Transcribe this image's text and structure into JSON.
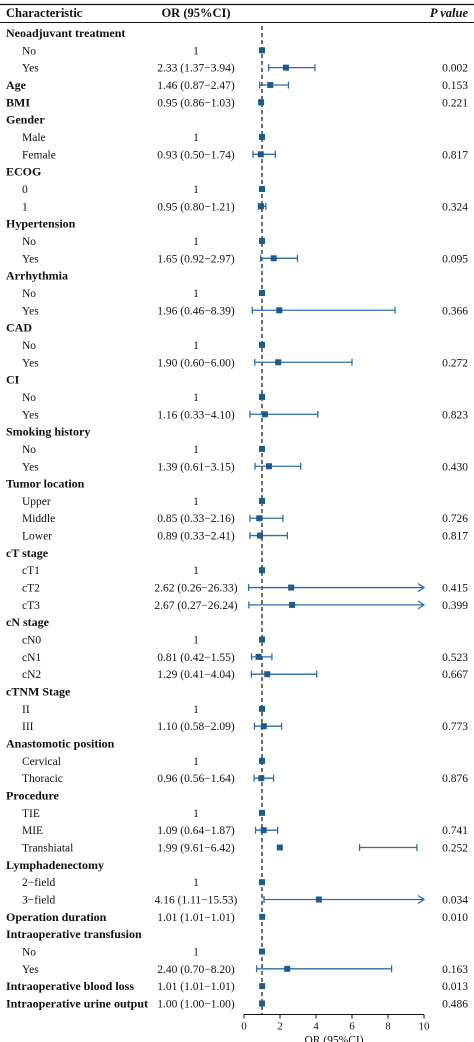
{
  "header": {
    "characteristic": "Characteristic",
    "or_ci": "OR (95%CI)",
    "p_value": "P value"
  },
  "axis": {
    "label": "OR (95%CI)",
    "ticks": [
      0,
      2,
      4,
      6,
      8,
      10
    ],
    "xlim": [
      0,
      10
    ],
    "reference": 1
  },
  "colors": {
    "marker": "#1f5a8c",
    "line": "#2a6ea8",
    "reference": "#222222"
  },
  "chart_data": {
    "type": "forest",
    "x_label": "OR (95%CI)",
    "xlim": [
      0,
      10
    ],
    "reference_line": 1,
    "rows": [
      {
        "label": "Neoadjuvant treatment",
        "header": true
      },
      {
        "label": "No",
        "or_text": "1",
        "or": 1
      },
      {
        "label": "Yes",
        "or_text": "2.33 (1.37−3.94)",
        "or": 2.33,
        "lo": 1.37,
        "hi": 3.94,
        "p": "0.002"
      },
      {
        "label": "Age",
        "header": true,
        "or_text": "1.46 (0.87−2.47)",
        "or": 1.46,
        "lo": 0.87,
        "hi": 2.47,
        "p": "0.153"
      },
      {
        "label": "BMI",
        "header": true,
        "or_text": "0.95 (0.86−1.03)",
        "or": 0.95,
        "lo": 0.86,
        "hi": 1.03,
        "p": "0.221"
      },
      {
        "label": "Gender",
        "header": true
      },
      {
        "label": "Male",
        "or_text": "1",
        "or": 1
      },
      {
        "label": "Female",
        "or_text": "0.93 (0.50−1.74)",
        "or": 0.93,
        "lo": 0.5,
        "hi": 1.74,
        "p": "0.817"
      },
      {
        "label": "ECOG",
        "header": true
      },
      {
        "label": "0",
        "or_text": "1",
        "or": 1
      },
      {
        "label": "1",
        "or_text": "0.95 (0.80−1.21)",
        "or": 0.95,
        "lo": 0.8,
        "hi": 1.21,
        "p": "0.324"
      },
      {
        "label": "Hypertension",
        "header": true
      },
      {
        "label": "No",
        "or_text": "1",
        "or": 1
      },
      {
        "label": "Yes",
        "or_text": "1.65 (0.92−2.97)",
        "or": 1.65,
        "lo": 0.92,
        "hi": 2.97,
        "p": "0.095"
      },
      {
        "label": "Arrhythmia",
        "header": true
      },
      {
        "label": "No",
        "or_text": "1",
        "or": 1
      },
      {
        "label": "Yes",
        "or_text": "1.96 (0.46−8.39)",
        "or": 1.96,
        "lo": 0.46,
        "hi": 8.39,
        "p": "0.366"
      },
      {
        "label": "CAD",
        "header": true
      },
      {
        "label": "No",
        "or_text": "1",
        "or": 1
      },
      {
        "label": "Yes",
        "or_text": "1.90 (0.60−6.00)",
        "or": 1.9,
        "lo": 0.6,
        "hi": 6.0,
        "p": "0.272"
      },
      {
        "label": "CI",
        "header": true
      },
      {
        "label": "No",
        "or_text": "1",
        "or": 1
      },
      {
        "label": "Yes",
        "or_text": "1.16 (0.33−4.10)",
        "or": 1.16,
        "lo": 0.33,
        "hi": 4.1,
        "p": "0.823"
      },
      {
        "label": "Smoking history",
        "header": true
      },
      {
        "label": "No",
        "or_text": "1",
        "or": 1
      },
      {
        "label": "Yes",
        "or_text": "1.39 (0.61−3.15)",
        "or": 1.39,
        "lo": 0.61,
        "hi": 3.15,
        "p": "0.430"
      },
      {
        "label": "Tumor location",
        "header": true
      },
      {
        "label": "Upper",
        "or_text": "1",
        "or": 1
      },
      {
        "label": "Middle",
        "or_text": "0.85 (0.33−2.16)",
        "or": 0.85,
        "lo": 0.33,
        "hi": 2.16,
        "p": "0.726"
      },
      {
        "label": "Lower",
        "or_text": "0.89 (0.33−2.41)",
        "or": 0.89,
        "lo": 0.33,
        "hi": 2.41,
        "p": "0.817"
      },
      {
        "label": "cT stage",
        "header": true
      },
      {
        "label": "cT1",
        "or_text": "1",
        "or": 1
      },
      {
        "label": "cT2",
        "or_text": "2.62 (0.26−26.33)",
        "or": 2.62,
        "lo": 0.26,
        "hi": 26.33,
        "p": "0.415"
      },
      {
        "label": "cT3",
        "or_text": "2.67 (0.27−26.24)",
        "or": 2.67,
        "lo": 0.27,
        "hi": 26.24,
        "p": "0.399"
      },
      {
        "label": "cN stage",
        "header": true
      },
      {
        "label": "cN0",
        "or_text": "1",
        "or": 1
      },
      {
        "label": "cN1",
        "or_text": "0.81 (0.42−1.55)",
        "or": 0.81,
        "lo": 0.42,
        "hi": 1.55,
        "p": "0.523"
      },
      {
        "label": "cN2",
        "or_text": "1.29 (0.41−4.04)",
        "or": 1.29,
        "lo": 0.41,
        "hi": 4.04,
        "p": "0.667"
      },
      {
        "label": "cTNM Stage",
        "header": true
      },
      {
        "label": "II",
        "or_text": "1",
        "or": 1
      },
      {
        "label": "III",
        "or_text": "1.10 (0.58−2.09)",
        "or": 1.1,
        "lo": 0.58,
        "hi": 2.09,
        "p": "0.773"
      },
      {
        "label": "Anastomotic position",
        "header": true
      },
      {
        "label": "Cervical",
        "or_text": "1",
        "or": 1
      },
      {
        "label": "Thoracic",
        "or_text": "0.96 (0.56−1.64)",
        "or": 0.96,
        "lo": 0.56,
        "hi": 1.64,
        "p": "0.876"
      },
      {
        "label": "Procedure",
        "header": true
      },
      {
        "label": "TIE",
        "or_text": "1",
        "or": 1
      },
      {
        "label": "MIE",
        "or_text": "1.09 (0.64−1.87)",
        "or": 1.09,
        "lo": 0.64,
        "hi": 1.87,
        "p": "0.741"
      },
      {
        "label": "Transhiatal",
        "or_text": "1.99 (9.61−6.42)",
        "or": 1.99,
        "lo": 6.42,
        "hi": 9.61,
        "p": "0.252"
      },
      {
        "label": "Lymphadenectomy",
        "header": true
      },
      {
        "label": "2−field",
        "or_text": "1",
        "or": 1
      },
      {
        "label": "3−field",
        "or_text": "4.16 (1.11−15.53)",
        "or": 4.16,
        "lo": 1.11,
        "hi": 15.53,
        "p": "0.034"
      },
      {
        "label": "Operation duration",
        "header": true,
        "or_text": "1.01 (1.01−1.01)",
        "or": 1.01,
        "lo": 1.01,
        "hi": 1.01,
        "p": "0.010"
      },
      {
        "label": "Intraoperative transfusion",
        "header": true
      },
      {
        "label": "No",
        "or_text": "1",
        "or": 1
      },
      {
        "label": "Yes",
        "or_text": "2.40 (0.70−8.20)",
        "or": 2.4,
        "lo": 0.7,
        "hi": 8.2,
        "p": "0.163"
      },
      {
        "label": "Intraoperative blood loss",
        "header": true,
        "or_text": "1.01 (1.01−1.01)",
        "or": 1.01,
        "lo": 1.01,
        "hi": 1.01,
        "p": "0.013"
      },
      {
        "label": "Intraoperative urine output",
        "header": true,
        "or_text": "1.00 (1.00−1.00)",
        "or": 1.0,
        "lo": 1.0,
        "hi": 1.0,
        "p": "0.486"
      }
    ]
  }
}
